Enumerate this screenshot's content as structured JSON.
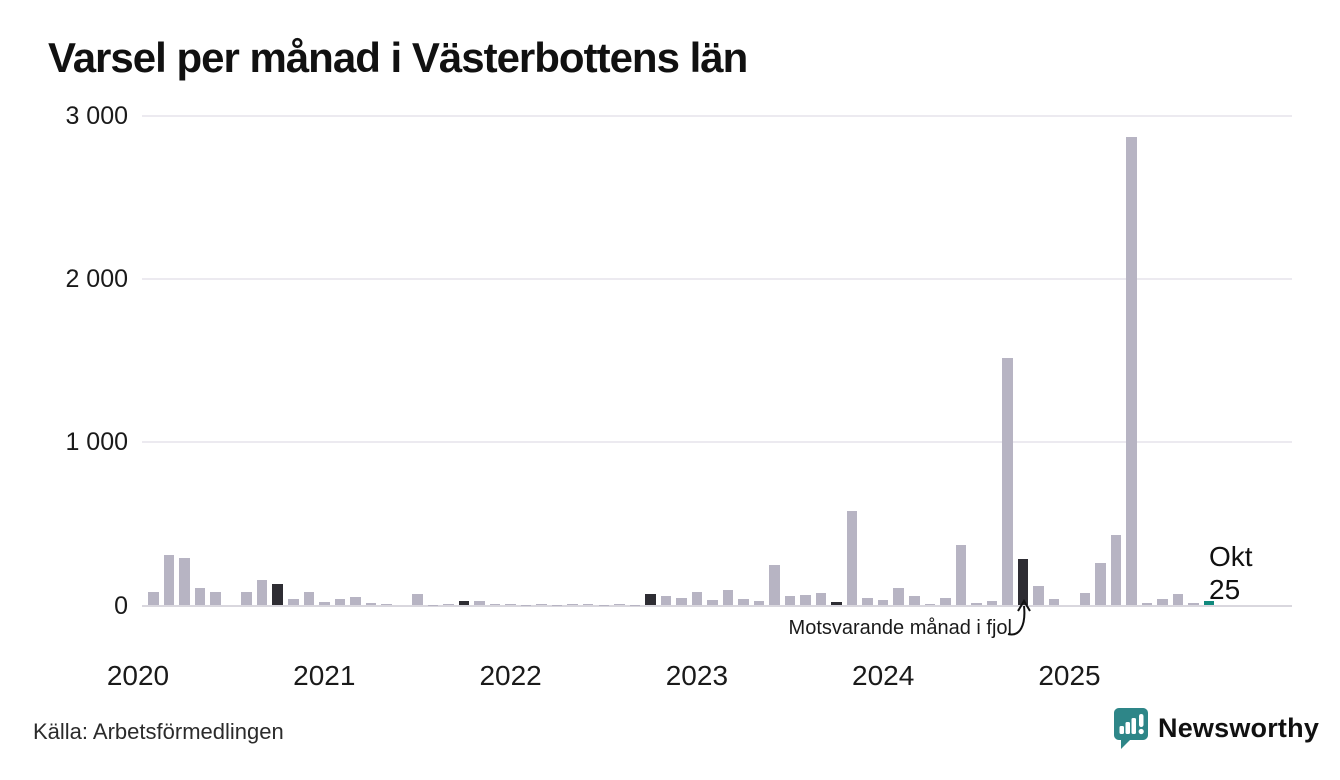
{
  "page": {
    "title": "Varsel per månad i Västerbottens län",
    "source": "Källa: Arbetsförmedlingen",
    "brand": "Newsworthy"
  },
  "annotation": {
    "text": "Motsvarande månad i fjol"
  },
  "current_label": {
    "line1": "Okt",
    "line2": "25"
  },
  "colors": {
    "bar": "#b7b4c3",
    "last_year": "#2e2d33",
    "current": "#10897d",
    "brand": "#2e8688",
    "grid": "#eceaf0",
    "axis": "#d9d7de",
    "text": "#111111"
  },
  "chart_data": {
    "type": "bar",
    "title": "Varsel per månad i Västerbottens län",
    "xlabel": "",
    "ylabel": "",
    "ylim": [
      0,
      3000
    ],
    "grid": "horizontal",
    "legend": "none",
    "y_ticks": [
      {
        "label": "3 000",
        "value": 3000
      },
      {
        "label": "2 000",
        "value": 2000
      },
      {
        "label": "1 000",
        "value": 1000
      },
      {
        "label": "0",
        "value": 0
      }
    ],
    "year_ticks": [
      {
        "label": "2020",
        "month_index": 0
      },
      {
        "label": "2021",
        "month_index": 12
      },
      {
        "label": "2022",
        "month_index": 24
      },
      {
        "label": "2023",
        "month_index": 36
      },
      {
        "label": "2024",
        "month_index": 48
      },
      {
        "label": "2025",
        "month_index": 60
      }
    ],
    "kinds": {
      "n": "normal month (gray)",
      "f": "same month last year, highlighted dark",
      "c": "current month Okt 25, teal"
    },
    "months": [
      [
        "2020-01",
        0,
        "n"
      ],
      [
        "2020-02",
        85,
        "n"
      ],
      [
        "2020-03",
        310,
        "n"
      ],
      [
        "2020-04",
        290,
        "n"
      ],
      [
        "2020-05",
        110,
        "n"
      ],
      [
        "2020-06",
        85,
        "n"
      ],
      [
        "2020-07",
        0,
        "n"
      ],
      [
        "2020-08",
        80,
        "n"
      ],
      [
        "2020-09",
        155,
        "n"
      ],
      [
        "2020-10",
        130,
        "f"
      ],
      [
        "2020-11",
        42,
        "n"
      ],
      [
        "2020-12",
        85,
        "n"
      ],
      [
        "2021-01",
        23,
        "n"
      ],
      [
        "2021-02",
        40,
        "n"
      ],
      [
        "2021-03",
        54,
        "n"
      ],
      [
        "2021-04",
        14,
        "n"
      ],
      [
        "2021-05",
        8,
        "n"
      ],
      [
        "2021-06",
        0,
        "n"
      ],
      [
        "2021-07",
        68,
        "n"
      ],
      [
        "2021-08",
        6,
        "n"
      ],
      [
        "2021-09",
        8,
        "n"
      ],
      [
        "2021-10",
        29,
        "f"
      ],
      [
        "2021-11",
        25,
        "n"
      ],
      [
        "2021-12",
        12,
        "n"
      ],
      [
        "2022-01",
        9,
        "n"
      ],
      [
        "2022-02",
        5,
        "n"
      ],
      [
        "2022-03",
        7,
        "n"
      ],
      [
        "2022-04",
        5,
        "n"
      ],
      [
        "2022-05",
        7,
        "n"
      ],
      [
        "2022-06",
        9,
        "n"
      ],
      [
        "2022-07",
        5,
        "n"
      ],
      [
        "2022-08",
        7,
        "n"
      ],
      [
        "2022-09",
        5,
        "n"
      ],
      [
        "2022-10",
        68,
        "f"
      ],
      [
        "2022-11",
        57,
        "n"
      ],
      [
        "2022-12",
        45,
        "n"
      ],
      [
        "2023-01",
        80,
        "n"
      ],
      [
        "2023-02",
        36,
        "n"
      ],
      [
        "2023-03",
        97,
        "n"
      ],
      [
        "2023-04",
        42,
        "n"
      ],
      [
        "2023-05",
        28,
        "n"
      ],
      [
        "2023-06",
        250,
        "n"
      ],
      [
        "2023-07",
        60,
        "n"
      ],
      [
        "2023-08",
        62,
        "n"
      ],
      [
        "2023-09",
        78,
        "n"
      ],
      [
        "2023-10",
        23,
        "f"
      ],
      [
        "2023-11",
        580,
        "n"
      ],
      [
        "2023-12",
        48,
        "n"
      ],
      [
        "2024-01",
        32,
        "n"
      ],
      [
        "2024-02",
        105,
        "n"
      ],
      [
        "2024-03",
        56,
        "n"
      ],
      [
        "2024-04",
        10,
        "n"
      ],
      [
        "2024-05",
        43,
        "n"
      ],
      [
        "2024-06",
        370,
        "n"
      ],
      [
        "2024-07",
        17,
        "n"
      ],
      [
        "2024-08",
        28,
        "n"
      ],
      [
        "2024-09",
        1515,
        "n"
      ],
      [
        "2024-10",
        285,
        "f"
      ],
      [
        "2024-11",
        118,
        "n"
      ],
      [
        "2024-12",
        40,
        "n"
      ],
      [
        "2025-01",
        0,
        "n"
      ],
      [
        "2025-02",
        78,
        "n"
      ],
      [
        "2025-03",
        258,
        "n"
      ],
      [
        "2025-04",
        432,
        "n"
      ],
      [
        "2025-05",
        2870,
        "n"
      ],
      [
        "2025-06",
        17,
        "n"
      ],
      [
        "2025-07",
        38,
        "n"
      ],
      [
        "2025-08",
        70,
        "n"
      ],
      [
        "2025-09",
        13,
        "n"
      ],
      [
        "2025-10",
        26,
        "c"
      ]
    ]
  }
}
